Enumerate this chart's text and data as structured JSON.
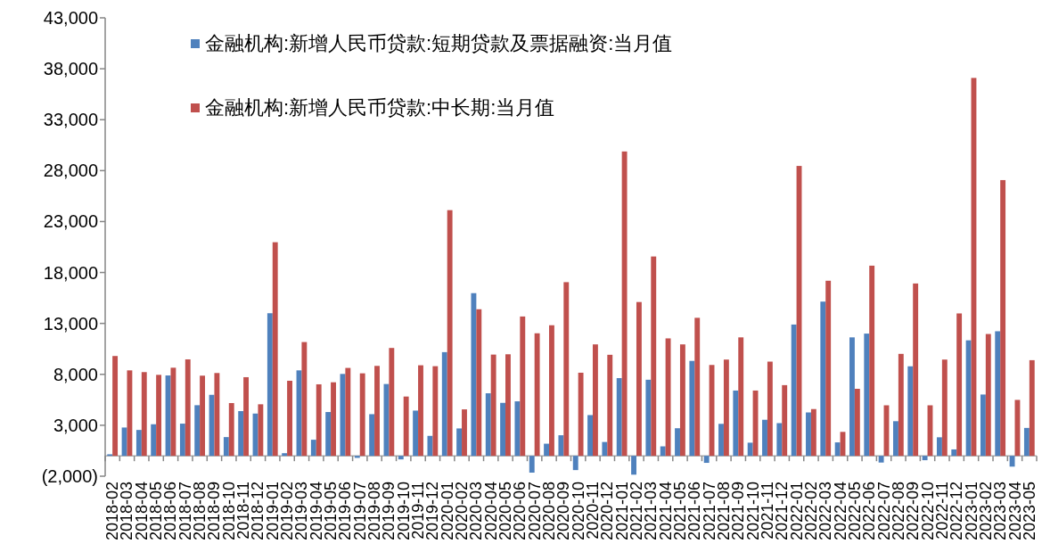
{
  "chart_data": {
    "type": "bar",
    "categories": [
      "2018-02",
      "2018-03",
      "2018-04",
      "2018-05",
      "2018-06",
      "2018-07",
      "2018-08",
      "2018-09",
      "2018-10",
      "2018-11",
      "2018-12",
      "2019-01",
      "2019-02",
      "2019-03",
      "2019-04",
      "2019-05",
      "2019-06",
      "2019-07",
      "2019-08",
      "2019-09",
      "2019-10",
      "2019-11",
      "2019-12",
      "2020-01",
      "2020-02",
      "2020-03",
      "2020-04",
      "2020-05",
      "2020-06",
      "2020-07",
      "2020-08",
      "2020-09",
      "2020-10",
      "2020-11",
      "2020-12",
      "2021-01",
      "2021-02",
      "2021-03",
      "2021-04",
      "2021-05",
      "2021-06",
      "2021-07",
      "2021-08",
      "2021-09",
      "2021-10",
      "2021-11",
      "2021-12",
      "2022-01",
      "2022-02",
      "2022-03",
      "2022-04",
      "2022-05",
      "2022-06",
      "2022-07",
      "2022-08",
      "2022-09",
      "2022-10",
      "2022-11",
      "2022-12",
      "2023-01",
      "2023-02",
      "2023-03",
      "2023-04",
      "2023-05"
    ],
    "series": [
      {
        "name": "金融机构:新增人民币贷款:短期贷款及票据融资:当月值",
        "color": "#4f81bd",
        "values": [
          150,
          2780,
          2540,
          3100,
          7890,
          3160,
          4970,
          5990,
          1840,
          4390,
          4150,
          14000,
          260,
          8390,
          1580,
          4300,
          8040,
          -200,
          4090,
          7050,
          -350,
          4440,
          1960,
          10180,
          2690,
          15970,
          6140,
          5200,
          5350,
          -1650,
          1190,
          2020,
          -1400,
          4000,
          1360,
          7630,
          -1850,
          7470,
          930,
          2710,
          9320,
          -690,
          3140,
          6410,
          1290,
          3540,
          3210,
          12890,
          4260,
          15140,
          1320,
          11630,
          12000,
          -660,
          3400,
          8790,
          -430,
          1820,
          630,
          11340,
          6020,
          12230,
          -1060,
          2740
        ]
      },
      {
        "name": "金融机构:新增人民币贷款:中长期:当月值",
        "color": "#c0504d",
        "values": [
          9800,
          8390,
          8220,
          7950,
          8650,
          9470,
          7870,
          8130,
          5180,
          7720,
          5060,
          20970,
          7370,
          11170,
          7020,
          7220,
          8630,
          8100,
          8830,
          10590,
          5820,
          8890,
          8800,
          24120,
          4560,
          14390,
          9940,
          9970,
          13680,
          12030,
          12820,
          17050,
          8160,
          10940,
          9920,
          29880,
          15100,
          19570,
          11530,
          10940,
          13550,
          8920,
          9450,
          11630,
          6410,
          9250,
          6940,
          28460,
          4590,
          17190,
          2350,
          6580,
          18670,
          4960,
          10010,
          16920,
          4960,
          9450,
          13980,
          37100,
          11960,
          27070,
          5490,
          9390
        ]
      }
    ],
    "ylim": [
      -2000,
      43000
    ],
    "yticks": [
      {
        "value": -2000,
        "label": "(2,000)"
      },
      {
        "value": 3000,
        "label": "3,000"
      },
      {
        "value": 8000,
        "label": "8,000"
      },
      {
        "value": 13000,
        "label": "13,000"
      },
      {
        "value": 18000,
        "label": "18,000"
      },
      {
        "value": 23000,
        "label": "23,000"
      },
      {
        "value": 28000,
        "label": "28,000"
      },
      {
        "value": 33000,
        "label": "33,000"
      },
      {
        "value": 38000,
        "label": "38,000"
      },
      {
        "value": 43000,
        "label": "43,000"
      }
    ],
    "legend": "top left",
    "grid": false
  }
}
